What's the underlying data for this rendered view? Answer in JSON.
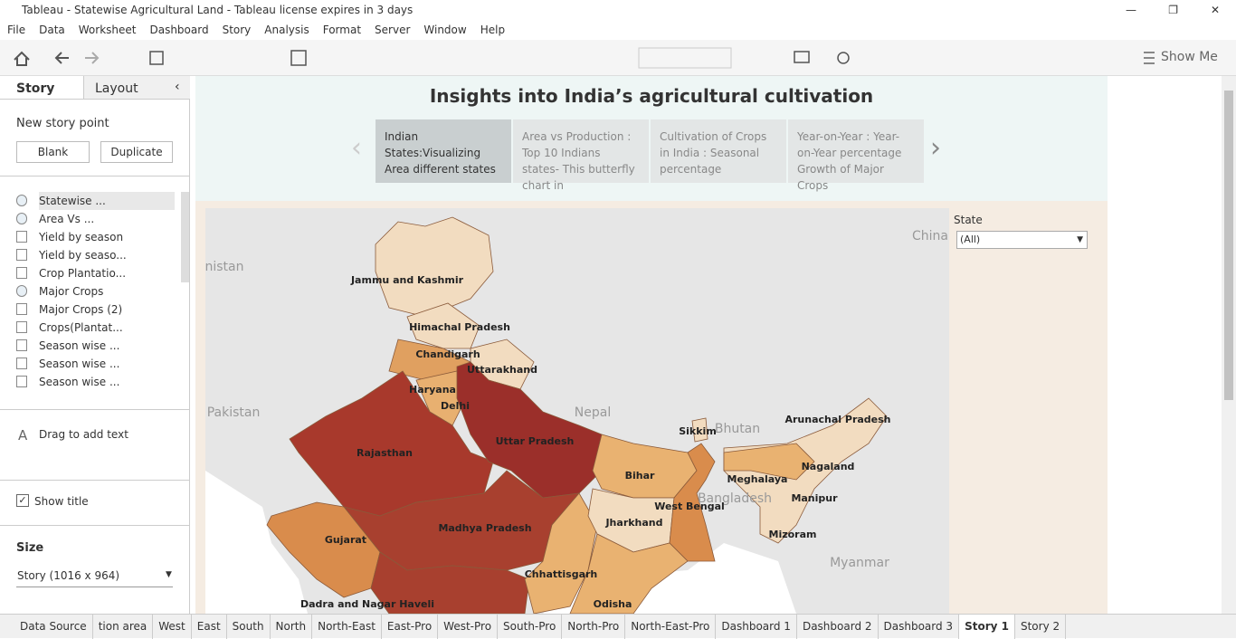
{
  "window": {
    "title": "Tableau - Statewise Agricultural Land - Tableau license expires in 3 days",
    "menu": [
      "File",
      "Data",
      "Worksheet",
      "Dashboard",
      "Story",
      "Analysis",
      "Format",
      "Server",
      "Window",
      "Help"
    ]
  },
  "toolbar": {
    "show_me": "Show Me"
  },
  "side_pane": {
    "tabs": [
      "Story",
      "Layout"
    ],
    "new_story_point": "New story point",
    "buttons": [
      "Blank",
      "Duplicate"
    ],
    "sheets": [
      "Statewise ...",
      "Area Vs ...",
      "Yield by season",
      "Yield by seaso...",
      "Crop Plantatio...",
      "Major Crops",
      "Major Crops (2)",
      "Crops(Plantat...",
      "Season wise ...",
      "Season wise ...",
      "Season wise ..."
    ],
    "drag_text": "Drag to add text",
    "show_title": "Show title",
    "size_label": "Size",
    "size_value": "Story (1016 x 964)"
  },
  "story": {
    "title": "Insights into India’s agricultural cultivation",
    "points": [
      "Indian States:Visualizing Area different states",
      "Area vs Production : Top 10 Indians states- This butterfly chart in",
      "Cultivation of Crops in India : Seasonal percentage",
      "Year-on-Year : Year-on-Year percentage Growth of Major Crops"
    ],
    "filter": {
      "label": "State",
      "value": "(All)"
    }
  },
  "map": {
    "countries": [
      "China",
      "nistan",
      "Pakistan",
      "Nepal",
      "Bhutan",
      "Bangladesh",
      "Myanmar"
    ],
    "states": [
      "Jammu and Kashmir",
      "Himachal Pradesh",
      "Chandigarh",
      "Uttarakhand",
      "Haryana",
      "Delhi",
      "Rajasthan",
      "Uttar Pradesh",
      "Bihar",
      "Sikkim",
      "Arunachal Pradesh",
      "Meghalaya",
      "Nagaland",
      "Manipur",
      "West Bengal",
      "Jharkhand",
      "Mizoram",
      "Gujarat",
      "Madhya Pradesh",
      "Chhattisgarh",
      "Odisha",
      "Dadra and Nagar Haveli"
    ]
  },
  "sheet_tabs": [
    "Data Source",
    "tion area",
    "West",
    "East",
    "South",
    "North",
    "North-East",
    "East-Pro",
    "West-Pro",
    "South-Pro",
    "North-Pro",
    "North-East-Pro",
    "Dashboard 1",
    "Dashboard 2",
    "Dashboard 3",
    "Story 1",
    "Story 2"
  ]
}
